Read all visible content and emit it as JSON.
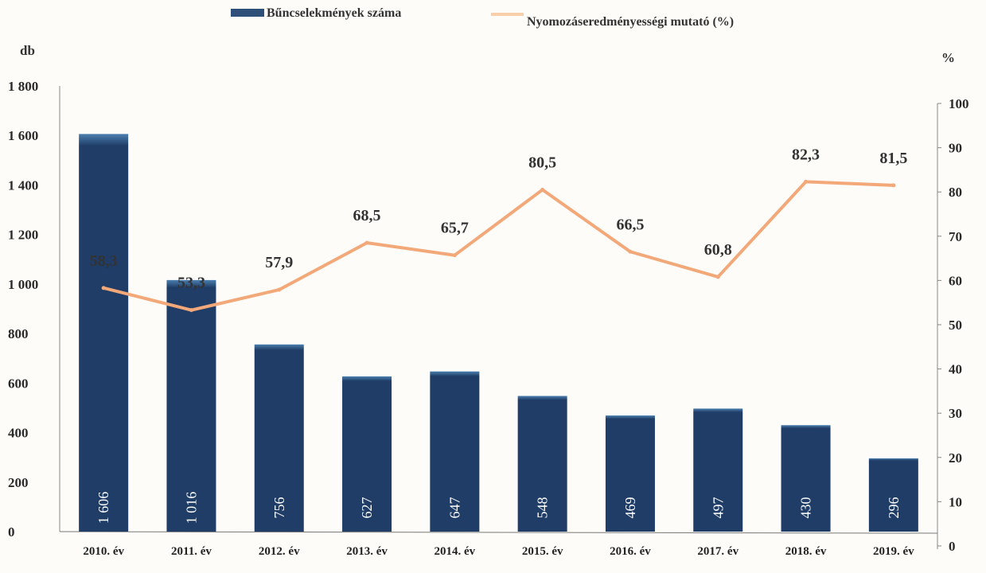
{
  "legend": {
    "bar_series": "Bűncselekmények száma",
    "line_series": "Nyomozáseredményességi mutató (%)"
  },
  "axes": {
    "left_unit": "db",
    "right_unit": "%"
  },
  "colors": {
    "bar": "#1f3d66",
    "bar_top": "#4b7fb0",
    "line": "#f2a878",
    "background": "#fdfcf8"
  },
  "chart_data": {
    "type": "bar",
    "categories": [
      "2010. év",
      "2011. év",
      "2012. év",
      "2013. év",
      "2014. év",
      "2015. év",
      "2016. év",
      "2017. év",
      "2018. év",
      "2019. év"
    ],
    "series": [
      {
        "name": "Bűncselekmények száma",
        "type": "bar",
        "axis": "left",
        "values": [
          1606,
          1016,
          756,
          627,
          647,
          548,
          469,
          497,
          430,
          296
        ],
        "labels": [
          "1 606",
          "1 016",
          "756",
          "627",
          "647",
          "548",
          "469",
          "497",
          "430",
          "296"
        ]
      },
      {
        "name": "Nyomozáseredményességi mutató (%)",
        "type": "line",
        "axis": "right",
        "values": [
          58.3,
          53.3,
          57.9,
          68.5,
          65.7,
          80.5,
          66.5,
          60.8,
          82.3,
          81.5
        ],
        "labels": [
          "58,3",
          "53,3",
          "57,9",
          "68,5",
          "65,7",
          "80,5",
          "66,5",
          "60,8",
          "82,3",
          "81,5"
        ]
      }
    ],
    "left_axis": {
      "ylim": [
        0,
        1800
      ],
      "ticks": [
        0,
        200,
        400,
        600,
        800,
        1000,
        1200,
        1400,
        1600,
        1800
      ],
      "tick_labels": [
        "0",
        "200",
        "400",
        "600",
        "800",
        "1 000",
        "1 200",
        "1 400",
        "1 600",
        "1 800"
      ]
    },
    "right_axis": {
      "ylim": [
        0,
        100
      ],
      "ticks": [
        0,
        10,
        20,
        30,
        40,
        50,
        60,
        70,
        80,
        90,
        100
      ],
      "tick_labels": [
        "0",
        "10",
        "20",
        "30",
        "40",
        "50",
        "60",
        "70",
        "80",
        "90",
        "100"
      ]
    },
    "legend_position": "top",
    "grid": false
  }
}
